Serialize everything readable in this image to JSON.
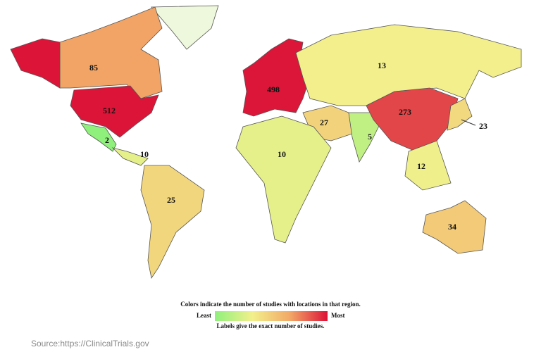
{
  "map": {
    "region_values": [
      85,
      512,
      2,
      10,
      25,
      498,
      13,
      27,
      10,
      5,
      273,
      23,
      12,
      34
    ],
    "color_stops": [
      "#8ff07c",
      "#f2f08c",
      "#f2a866",
      "#dc1438"
    ],
    "scale": "log"
  },
  "legend": {
    "title": "Colors indicate the number of studies with locations in that region.",
    "low": "Least",
    "high": "Most",
    "note": "Labels give the exact number of studies."
  },
  "source": "Source:https://ClinicalTrials.gov"
}
